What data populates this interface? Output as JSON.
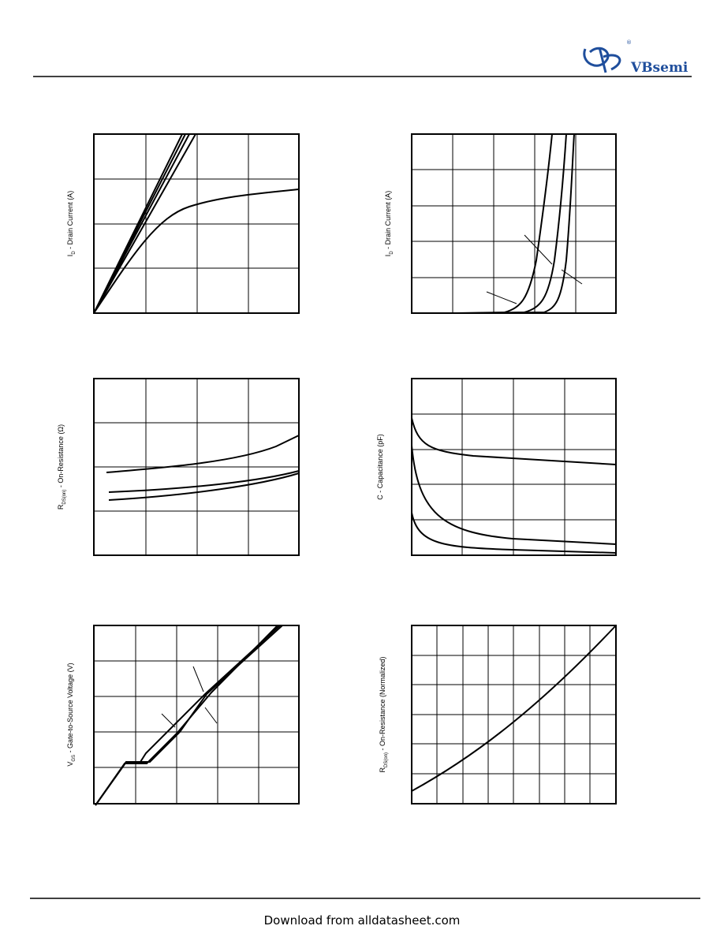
{
  "header": {
    "logo_text": "VBsemi",
    "logo_mark": "®"
  },
  "figures": [
    {
      "y_label": {
        "main": "I",
        "sub": "D",
        "rest": " - Drain Current (A)"
      }
    },
    {
      "y_label": {
        "main": "I",
        "sub": "D",
        "rest": " - Drain Current (A)"
      }
    },
    {
      "y_label": {
        "main": "R",
        "sub": "DS(on)",
        "rest": " - On-Resistance (Ω)"
      }
    },
    {
      "y_label": {
        "main": "C",
        "sub": "",
        "rest": " - Capacitance (pF)"
      }
    },
    {
      "y_label": {
        "main": "V",
        "sub": "GS",
        "rest": " - Gate-to-Source Voltage (V)"
      }
    },
    {
      "y_label": {
        "main": "R",
        "sub": "DS(on)",
        "rest": " - On-Resistance (Normalized)"
      }
    }
  ],
  "footer": {
    "text": "Download from alldatasheet.com"
  }
}
